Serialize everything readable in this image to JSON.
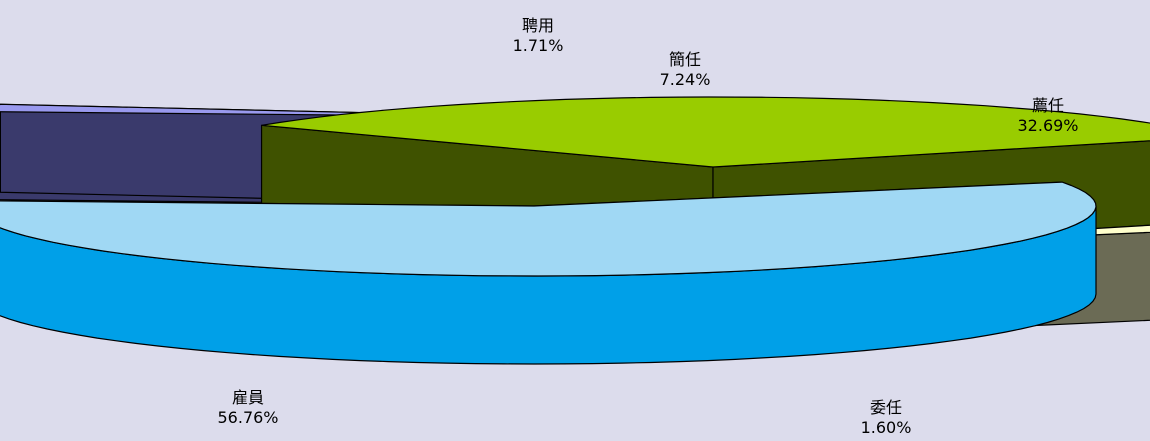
{
  "chart_data": {
    "type": "pie",
    "style": "3d-exploded",
    "categories": [
      "雇員",
      "聘用",
      "簡任",
      "薦任",
      "委任"
    ],
    "values": [
      56.76,
      1.71,
      7.24,
      32.69,
      1.6
    ],
    "value_labels": [
      "56.76%",
      "1.71%",
      "7.24%",
      "32.69%",
      "1.60%"
    ],
    "colors": {
      "雇員": {
        "top": "#a0d8f4",
        "side": "#00a0e8"
      },
      "聘用": {
        "top": "#9999ee",
        "side": "#3a3a6c"
      },
      "簡任": {
        "top": "#bfbff0",
        "side": "#a5a5a5"
      },
      "薦任": {
        "top": "#99cc00",
        "side": "#3f5200"
      },
      "委任": {
        "top": "#ffffcc",
        "side": "#6b6b55"
      }
    },
    "legend": "none"
  }
}
